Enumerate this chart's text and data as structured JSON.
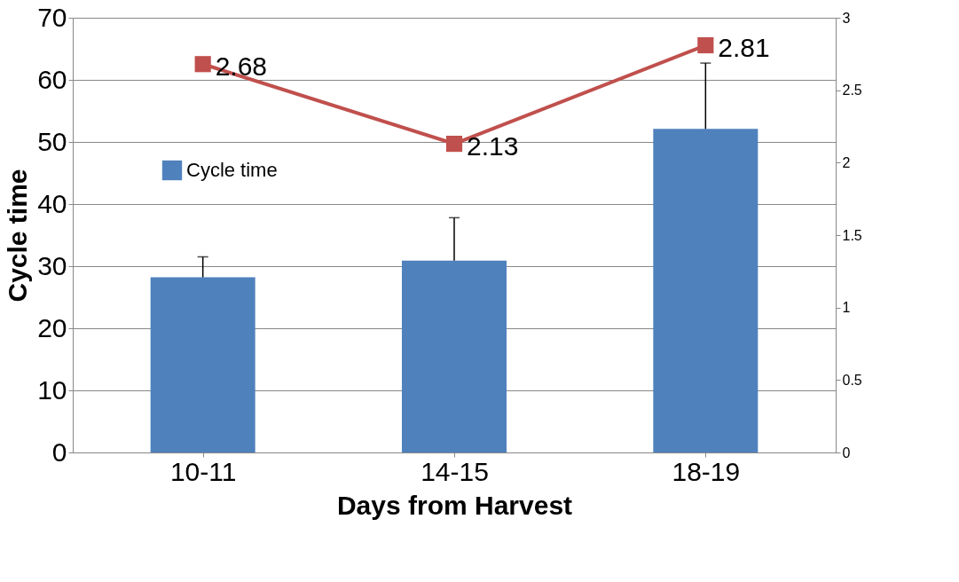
{
  "chart_data": {
    "type": "bar",
    "xlabel": "Days from Harvest",
    "ylabel": "Cycle time",
    "categories": [
      "10-11",
      "14-15",
      "18-19"
    ],
    "series": [
      {
        "name": "Cycle time",
        "color": "#4f81bd",
        "values": [
          28.2,
          30.9,
          52.1
        ],
        "errors": [
          [
            28.2,
            31.5
          ],
          [
            30.9,
            37.8
          ],
          [
            52.1,
            62.7
          ]
        ]
      },
      {
        "type": "line",
        "axis": "y2",
        "color": "#c0504d",
        "values": [
          2.68,
          2.13,
          2.81
        ],
        "marker": "square",
        "data_labels": true
      }
    ],
    "ylim": [
      0,
      70
    ],
    "yticks": [
      0,
      10,
      20,
      30,
      40,
      50,
      60,
      70
    ],
    "y2lim": [
      0,
      3
    ],
    "y2ticks": [
      0,
      0.5,
      1,
      1.5,
      2,
      2.5,
      3
    ],
    "grid": "y",
    "legend": "top left"
  }
}
